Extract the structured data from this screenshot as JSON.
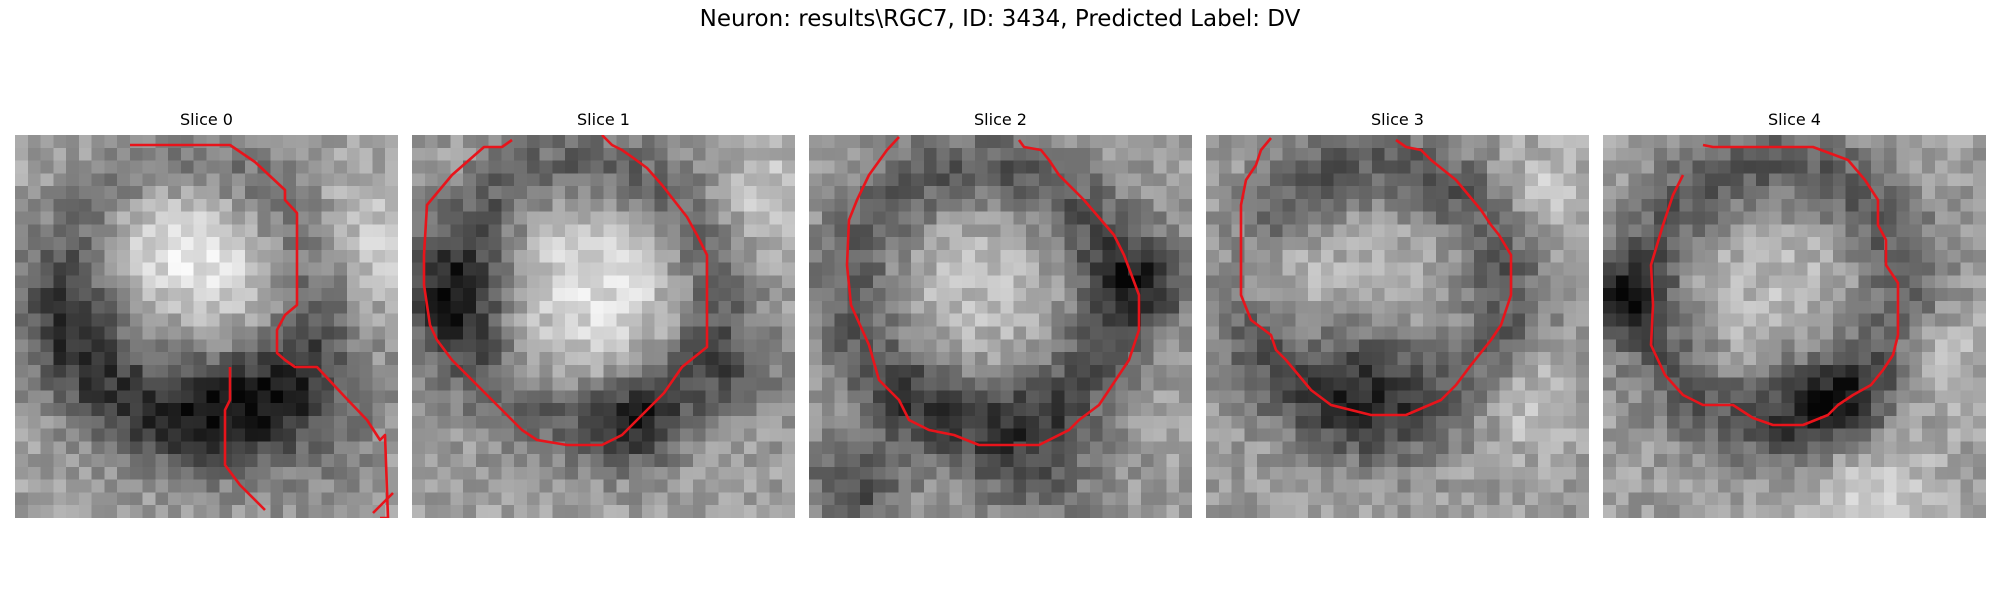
{
  "figure": {
    "title": "Neuron: results\\RGC7, ID: 3434, Predicted Label: DV"
  },
  "panels": [
    {
      "title": "Slice 0",
      "contour_color": "#e8141b"
    },
    {
      "title": "Slice 1",
      "contour_color": "#e8141b"
    },
    {
      "title": "Slice 2",
      "contour_color": "#e8141b"
    },
    {
      "title": "Slice 3",
      "contour_color": "#e8141b"
    },
    {
      "title": "Slice 4",
      "contour_color": "#e8141b"
    }
  ]
}
